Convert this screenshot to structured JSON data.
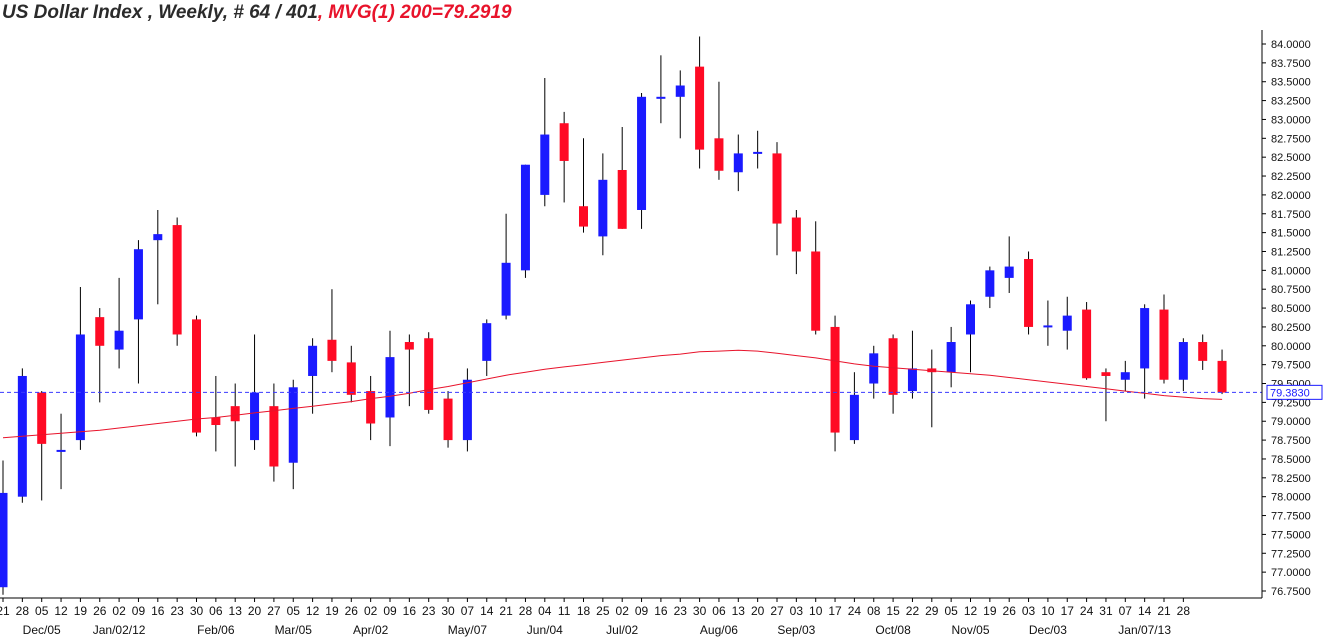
{
  "header": {
    "title": "US Dollar Index , Weekly, # 64 / 401",
    "ma_label": ", MVG(1) 200=79.2919"
  },
  "chart_data": {
    "type": "candlestick",
    "title": "US Dollar Index , Weekly, # 64 / 401",
    "ylim": [
      76.75,
      84.0
    ],
    "y_ticks": [
      "84.0000",
      "83.7500",
      "83.5000",
      "83.2500",
      "83.0000",
      "82.7500",
      "82.5000",
      "82.2500",
      "82.0000",
      "81.7500",
      "81.5000",
      "81.2500",
      "81.0000",
      "80.7500",
      "80.5000",
      "80.2500",
      "80.0000",
      "79.7500",
      "79.5000",
      "79.2500",
      "79.0000",
      "78.7500",
      "78.5000",
      "78.2500",
      "78.0000",
      "77.7500",
      "77.5000",
      "77.2500",
      "77.0000",
      "76.7500"
    ],
    "x_day_labels": [
      "21",
      "28",
      "05",
      "12",
      "19",
      "26",
      "02",
      "09",
      "16",
      "23",
      "30",
      "06",
      "13",
      "20",
      "27",
      "05",
      "12",
      "19",
      "26",
      "02",
      "09",
      "16",
      "23",
      "30",
      "07",
      "14",
      "21",
      "28",
      "04",
      "11",
      "18",
      "25",
      "02",
      "09",
      "16",
      "23",
      "30",
      "06",
      "13",
      "20",
      "27",
      "03",
      "10",
      "17",
      "24",
      "08",
      "15",
      "22",
      "29",
      "05",
      "12",
      "19",
      "26",
      "03",
      "10",
      "17",
      "24",
      "31",
      "07",
      "14",
      "21",
      "28"
    ],
    "x_month_labels": [
      {
        "label": "Dec/05",
        "week": 2
      },
      {
        "label": "Jan/02/12",
        "week": 6
      },
      {
        "label": "Feb/06",
        "week": 11
      },
      {
        "label": "Mar/05",
        "week": 15
      },
      {
        "label": "Apr/02",
        "week": 19
      },
      {
        "label": "May/07",
        "week": 24
      },
      {
        "label": "Jun/04",
        "week": 28
      },
      {
        "label": "Jul/02",
        "week": 32
      },
      {
        "label": "Aug/06",
        "week": 37
      },
      {
        "label": "Sep/03",
        "week": 41
      },
      {
        "label": "Oct/08",
        "week": 46
      },
      {
        "label": "Nov/05",
        "week": 50
      },
      {
        "label": "Dec/03",
        "week": 54
      },
      {
        "label": "Jan/07/13",
        "week": 59
      }
    ],
    "last_value_label": "79.3830",
    "last_value": 79.383,
    "ma_period": 200,
    "ma_value": 79.2919,
    "grid": false,
    "colors": {
      "up": "#1a1aff",
      "down": "#ff0a24",
      "ma": "#e8132b",
      "last_line": "#3a3aff"
    },
    "candles": [
      {
        "o": 76.8,
        "h": 78.48,
        "l": 76.7,
        "c": 78.05
      },
      {
        "o": 78.0,
        "h": 79.7,
        "l": 77.92,
        "c": 79.6
      },
      {
        "o": 79.38,
        "h": 79.4,
        "l": 77.95,
        "c": 78.7
      },
      {
        "o": 78.6,
        "h": 79.1,
        "l": 78.1,
        "c": 78.62
      },
      {
        "o": 78.75,
        "h": 80.78,
        "l": 78.62,
        "c": 80.15
      },
      {
        "o": 80.38,
        "h": 80.5,
        "l": 79.25,
        "c": 80.0
      },
      {
        "o": 79.95,
        "h": 80.9,
        "l": 79.7,
        "c": 80.2
      },
      {
        "o": 80.35,
        "h": 81.4,
        "l": 79.5,
        "c": 81.28
      },
      {
        "o": 81.4,
        "h": 81.8,
        "l": 80.55,
        "c": 81.48
      },
      {
        "o": 81.6,
        "h": 81.7,
        "l": 80.0,
        "c": 80.15
      },
      {
        "o": 80.35,
        "h": 80.4,
        "l": 78.8,
        "c": 78.85
      },
      {
        "o": 79.05,
        "h": 79.6,
        "l": 78.6,
        "c": 78.95
      },
      {
        "o": 79.2,
        "h": 79.5,
        "l": 78.4,
        "c": 79.0
      },
      {
        "o": 78.75,
        "h": 80.15,
        "l": 78.62,
        "c": 79.38
      },
      {
        "o": 79.2,
        "h": 79.5,
        "l": 78.2,
        "c": 78.4
      },
      {
        "o": 78.45,
        "h": 79.55,
        "l": 78.1,
        "c": 79.45
      },
      {
        "o": 79.6,
        "h": 80.1,
        "l": 79.1,
        "c": 80.0
      },
      {
        "o": 80.08,
        "h": 80.75,
        "l": 79.65,
        "c": 79.8
      },
      {
        "o": 79.78,
        "h": 80.0,
        "l": 79.25,
        "c": 79.35
      },
      {
        "o": 79.4,
        "h": 79.6,
        "l": 78.75,
        "c": 78.97
      },
      {
        "o": 79.05,
        "h": 80.2,
        "l": 78.67,
        "c": 79.85
      },
      {
        "o": 80.05,
        "h": 80.15,
        "l": 79.2,
        "c": 79.95
      },
      {
        "o": 80.1,
        "h": 80.18,
        "l": 79.1,
        "c": 79.15
      },
      {
        "o": 79.3,
        "h": 79.4,
        "l": 78.65,
        "c": 78.75
      },
      {
        "o": 78.75,
        "h": 79.7,
        "l": 78.6,
        "c": 79.55
      },
      {
        "o": 79.8,
        "h": 80.35,
        "l": 79.6,
        "c": 80.3
      },
      {
        "o": 80.4,
        "h": 81.75,
        "l": 80.35,
        "c": 81.1
      },
      {
        "o": 81.0,
        "h": 82.4,
        "l": 80.9,
        "c": 82.4
      },
      {
        "o": 82.0,
        "h": 83.55,
        "l": 81.85,
        "c": 82.8
      },
      {
        "o": 82.95,
        "h": 83.1,
        "l": 81.9,
        "c": 82.45
      },
      {
        "o": 81.85,
        "h": 82.75,
        "l": 81.5,
        "c": 81.58
      },
      {
        "o": 81.45,
        "h": 82.55,
        "l": 81.2,
        "c": 82.2
      },
      {
        "o": 82.33,
        "h": 82.9,
        "l": 81.55,
        "c": 81.55
      },
      {
        "o": 81.8,
        "h": 83.35,
        "l": 81.55,
        "c": 83.3
      },
      {
        "o": 83.28,
        "h": 83.85,
        "l": 82.95,
        "c": 83.3
      },
      {
        "o": 83.3,
        "h": 83.65,
        "l": 82.75,
        "c": 83.45
      },
      {
        "o": 83.7,
        "h": 84.1,
        "l": 82.35,
        "c": 82.6
      },
      {
        "o": 82.75,
        "h": 83.5,
        "l": 82.2,
        "c": 82.32
      },
      {
        "o": 82.3,
        "h": 82.8,
        "l": 82.05,
        "c": 82.55
      },
      {
        "o": 82.55,
        "h": 82.85,
        "l": 82.35,
        "c": 82.57
      },
      {
        "o": 82.55,
        "h": 82.7,
        "l": 81.2,
        "c": 81.62
      },
      {
        "o": 81.7,
        "h": 81.8,
        "l": 80.95,
        "c": 81.25
      },
      {
        "o": 81.25,
        "h": 81.65,
        "l": 80.15,
        "c": 80.2
      },
      {
        "o": 80.25,
        "h": 80.4,
        "l": 78.6,
        "c": 78.85
      },
      {
        "o": 78.75,
        "h": 79.65,
        "l": 78.7,
        "c": 79.35
      },
      {
        "o": 79.5,
        "h": 80.0,
        "l": 79.3,
        "c": 79.9
      },
      {
        "o": 80.1,
        "h": 80.15,
        "l": 79.1,
        "c": 79.35
      },
      {
        "o": 79.4,
        "h": 80.2,
        "l": 79.3,
        "c": 79.7
      },
      {
        "o": 79.7,
        "h": 79.95,
        "l": 78.92,
        "c": 79.65
      },
      {
        "o": 79.65,
        "h": 80.25,
        "l": 79.45,
        "c": 80.05
      },
      {
        "o": 80.15,
        "h": 80.6,
        "l": 79.65,
        "c": 80.55
      },
      {
        "o": 80.65,
        "h": 81.05,
        "l": 80.5,
        "c": 81.0
      },
      {
        "o": 80.9,
        "h": 81.45,
        "l": 80.7,
        "c": 81.05
      },
      {
        "o": 81.15,
        "h": 81.25,
        "l": 80.15,
        "c": 80.25
      },
      {
        "o": 80.25,
        "h": 80.6,
        "l": 80.0,
        "c": 80.27
      },
      {
        "o": 80.2,
        "h": 80.65,
        "l": 79.95,
        "c": 80.4
      },
      {
        "o": 80.48,
        "h": 80.58,
        "l": 79.55,
        "c": 79.57
      },
      {
        "o": 79.65,
        "h": 79.7,
        "l": 79.0,
        "c": 79.6
      },
      {
        "o": 79.55,
        "h": 79.8,
        "l": 79.4,
        "c": 79.65
      },
      {
        "o": 79.7,
        "h": 80.55,
        "l": 79.3,
        "c": 80.5
      },
      {
        "o": 80.48,
        "h": 80.68,
        "l": 79.5,
        "c": 79.55
      },
      {
        "o": 79.55,
        "h": 80.1,
        "l": 79.4,
        "c": 80.05
      },
      {
        "o": 80.05,
        "h": 80.15,
        "l": 79.68,
        "c": 79.8
      },
      {
        "o": 79.8,
        "h": 79.95,
        "l": 79.36,
        "c": 79.38
      }
    ],
    "ma_series": [
      78.78,
      78.8,
      78.82,
      78.84,
      78.86,
      78.88,
      78.91,
      78.94,
      78.97,
      79.0,
      79.03,
      79.05,
      79.08,
      79.11,
      79.14,
      79.17,
      79.2,
      79.23,
      79.26,
      79.3,
      79.33,
      79.37,
      79.42,
      79.46,
      79.51,
      79.56,
      79.61,
      79.65,
      79.69,
      79.72,
      79.75,
      79.78,
      79.81,
      79.84,
      79.87,
      79.89,
      79.92,
      79.93,
      79.94,
      79.93,
      79.9,
      79.87,
      79.84,
      79.8,
      79.76,
      79.73,
      79.71,
      79.69,
      79.67,
      79.65,
      79.63,
      79.61,
      79.58,
      79.55,
      79.52,
      79.49,
      79.46,
      79.43,
      79.4,
      79.37,
      79.34,
      79.32,
      79.3,
      79.29
    ]
  }
}
